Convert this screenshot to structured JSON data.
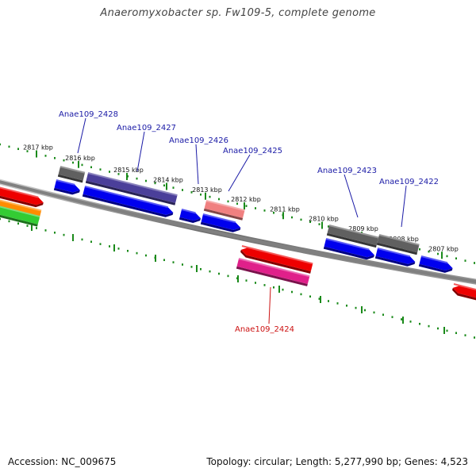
{
  "title": "Anaeromyxobacter sp. Fw109-5, complete genome",
  "footer": {
    "accession": "Accession: NC_009675",
    "summary": "Topology: circular; Length: 5,277,990 bp; Genes: 4,523"
  },
  "scale_labels": [
    "2817 kbp",
    "2816 kbp",
    "2815 kbp",
    "2814 kbp",
    "2813 kbp",
    "2812 kbp",
    "2811 kbp",
    "2810 kbp",
    "2809 kbp",
    "2808 kbp",
    "2807 kbp"
  ],
  "gene_labels": [
    {
      "name": "Anae109_2428",
      "color": "#1a1aa6"
    },
    {
      "name": "Anae109_2427",
      "color": "#1a1aa6"
    },
    {
      "name": "Anae109_2426",
      "color": "#1a1aa6"
    },
    {
      "name": "Anae109_2425",
      "color": "#1a1aa6"
    },
    {
      "name": "Anae109_2423",
      "color": "#1a1aa6"
    },
    {
      "name": "Anae109_2422",
      "color": "#1a1aa6"
    },
    {
      "name": "Anae109_2424",
      "color": "#cc1111"
    }
  ],
  "colors": {
    "backbone": "#808080",
    "scale_green": "#1a8a1a",
    "forward_blue": "#0000ee",
    "gene_gray": "#606060",
    "gene_purple": "#4b3f9a",
    "gene_pink": "#f08080",
    "gene_red": "#ee0000",
    "gene_magenta": "#e0208a",
    "gene_orange": "#ff8c00",
    "gene_green": "#33cc33"
  }
}
